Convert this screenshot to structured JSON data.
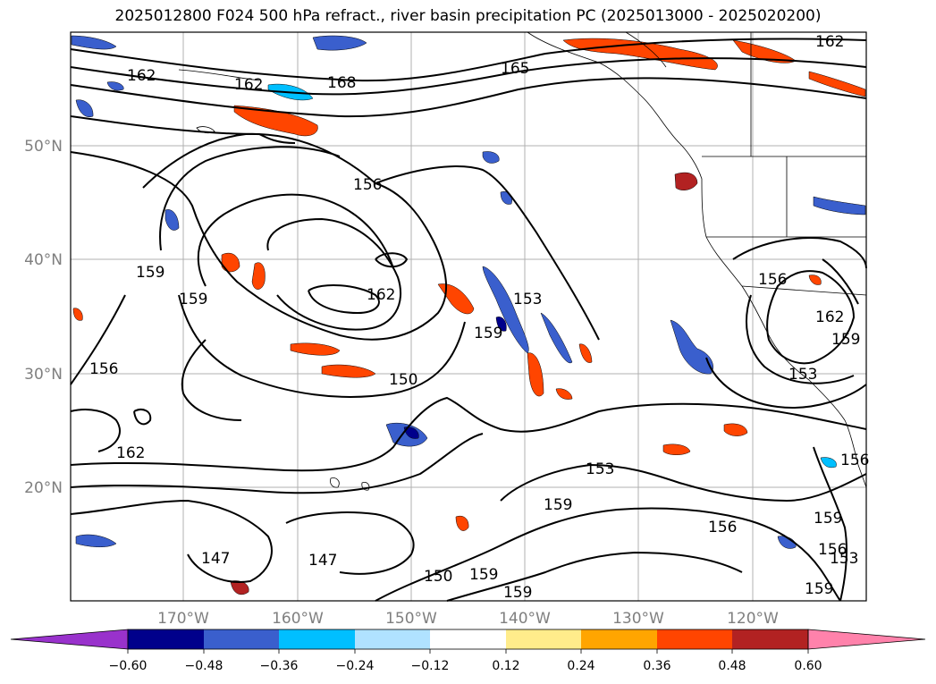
{
  "title": "2025012800 F024 500 hPa refract., river basin precipitation PC (2025013000 - 2025020200)",
  "map": {
    "lat_labels": [
      "50°N",
      "40°N",
      "30°N",
      "20°N"
    ],
    "lon_labels": [
      "170°W",
      "160°W",
      "150°W",
      "140°W",
      "130°W",
      "120°W"
    ],
    "contour_labels": [
      "162",
      "162",
      "168",
      "165",
      "162",
      "156",
      "159",
      "159",
      "156",
      "162",
      "162",
      "153",
      "159",
      "150",
      "153",
      "159",
      "147",
      "147",
      "150",
      "159",
      "159",
      "156",
      "159",
      "156",
      "153",
      "156",
      "162",
      "159",
      "153",
      "156",
      "159"
    ]
  },
  "colorbar": {
    "ticks": [
      "−0.60",
      "−0.48",
      "−0.36",
      "−0.24",
      "−0.12",
      "0.12",
      "0.24",
      "0.36",
      "0.48",
      "0.60"
    ],
    "colors": [
      "#9932cc",
      "#00008b",
      "#3a5fcd",
      "#00bfff",
      "#b0e2ff",
      "#ffffff",
      "#ffec8b",
      "#ffa500",
      "#ff4500",
      "#b22222",
      "#ff82ab"
    ]
  }
}
